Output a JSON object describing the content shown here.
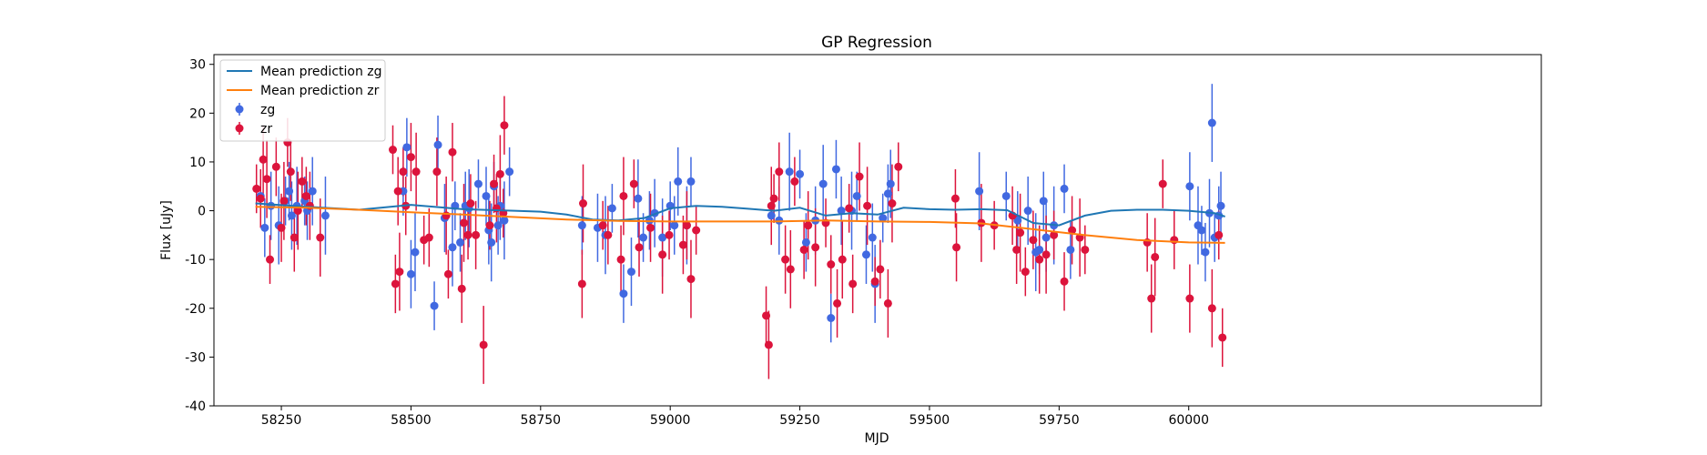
{
  "chart_data": {
    "type": "scatter",
    "title": "GP Regression",
    "xlabel": "MJD",
    "ylabel": "Flux [uJy]",
    "xlim": [
      58120,
      60680
    ],
    "ylim": [
      -40,
      32
    ],
    "xticks": [
      58250,
      58500,
      58750,
      59000,
      59250,
      59500,
      59750,
      60000
    ],
    "yticks": [
      -40,
      -30,
      -20,
      -10,
      0,
      10,
      20,
      30
    ],
    "grid": false,
    "legend_position": "top-left",
    "legend": [
      "Mean prediction zg",
      "Mean prediction zr",
      "zg",
      "zr"
    ],
    "colors": {
      "zg_line": "#1f77b4",
      "zr_line": "#ff7f0e",
      "zg": "#4169e1",
      "zr": "#dc143c"
    },
    "lines": [
      {
        "name": "Mean prediction zg",
        "x": [
          58200,
          58300,
          58400,
          58500,
          58600,
          58700,
          58750,
          58800,
          58850,
          58900,
          58950,
          59000,
          59050,
          59100,
          59150,
          59200,
          59250,
          59300,
          59350,
          59400,
          59450,
          59500,
          59550,
          59600,
          59650,
          59700,
          59750,
          59800,
          59850,
          59900,
          59950,
          60000,
          60050,
          60070
        ],
        "y": [
          1.5,
          0.8,
          0.2,
          1.2,
          0.3,
          0.0,
          -0.2,
          -0.8,
          -1.8,
          -2.0,
          -1.5,
          0.5,
          1.0,
          0.8,
          0.4,
          0.0,
          0.6,
          -1.0,
          -0.5,
          -0.8,
          0.6,
          0.3,
          0.2,
          0.3,
          0.1,
          -2.5,
          -3.0,
          -1.0,
          0.0,
          0.2,
          0.2,
          0.0,
          -0.5,
          -1.2
        ]
      },
      {
        "name": "Mean prediction zr",
        "x": [
          58200,
          58300,
          58400,
          58500,
          58600,
          58700,
          58800,
          58900,
          59000,
          59100,
          59200,
          59300,
          59400,
          59500,
          59600,
          59700,
          59800,
          59900,
          60000,
          60070
        ],
        "y": [
          0.8,
          0.6,
          0.2,
          -0.3,
          -0.8,
          -1.3,
          -1.8,
          -2.1,
          -2.2,
          -2.2,
          -2.2,
          -2.0,
          -2.2,
          -2.3,
          -2.6,
          -3.8,
          -5.0,
          -6.0,
          -6.5,
          -6.6
        ]
      }
    ],
    "series": [
      {
        "name": "zg",
        "x": [
          58210,
          58218,
          58230,
          58245,
          58258,
          58265,
          58270,
          58280,
          58295,
          58300,
          58310,
          58335,
          58485,
          58492,
          58500,
          58508,
          58545,
          58552,
          58565,
          58580,
          58585,
          58595,
          58605,
          58612,
          58630,
          58645,
          58650,
          58655,
          58660,
          58668,
          58672,
          58680,
          58690,
          58830,
          58860,
          58875,
          58888,
          58910,
          58925,
          58938,
          58948,
          58960,
          58970,
          58985,
          59000,
          59008,
          59015,
          59032,
          59040,
          59195,
          59210,
          59230,
          59250,
          59262,
          59280,
          59295,
          59310,
          59320,
          59330,
          59350,
          59360,
          59378,
          59390,
          59395,
          59410,
          59420,
          59425,
          59596,
          59648,
          59670,
          59690,
          59705,
          59712,
          59720,
          59725,
          59740,
          59760,
          59772,
          60002,
          60018,
          60025,
          60032,
          60040,
          60045,
          60050,
          60058,
          60062
        ],
        "y": [
          3,
          -3.5,
          1,
          -3,
          2,
          4,
          -1,
          1,
          2,
          0,
          4,
          -1,
          4,
          13,
          -13,
          -8.5,
          -19.5,
          13.5,
          -1.5,
          -7.5,
          1,
          -6.5,
          1,
          0.5,
          5.5,
          3,
          -4,
          -6.5,
          5,
          -3,
          1,
          -2,
          8,
          -3,
          -3.5,
          -5,
          0.5,
          -17,
          -12.5,
          2.5,
          -5.5,
          -2,
          -0.5,
          -5.5,
          1,
          -3,
          6,
          -3,
          6,
          -1,
          -2,
          8,
          7.5,
          -6.5,
          -2,
          5.5,
          -22,
          8.5,
          0,
          0,
          3,
          -9,
          -5.5,
          -15,
          -1.5,
          3.5,
          5.5,
          4,
          3,
          -2,
          0,
          -8.5,
          -8,
          2,
          -5.5,
          -3,
          4.5,
          -8,
          5,
          -3,
          -4,
          -8.5,
          -0.5,
          18,
          -5.5,
          -1,
          1
        ]
      },
      {
        "name": "zr",
        "x": [
          58202,
          58210,
          58215,
          58222,
          58228,
          58240,
          58250,
          58255,
          58262,
          58268,
          58275,
          58282,
          58290,
          58298,
          58305,
          58325,
          58465,
          58470,
          58475,
          58478,
          58485,
          58490,
          58500,
          58510,
          58525,
          58535,
          58550,
          58568,
          58572,
          58580,
          58598,
          58602,
          58610,
          58615,
          58625,
          58640,
          58652,
          58660,
          58665,
          58672,
          58678,
          58680,
          58830,
          58832,
          58870,
          58880,
          58905,
          58910,
          58930,
          58940,
          58962,
          58985,
          58998,
          59025,
          59032,
          59040,
          59050,
          59185,
          59190,
          59195,
          59200,
          59210,
          59222,
          59232,
          59240,
          59258,
          59266,
          59280,
          59300,
          59310,
          59322,
          59332,
          59345,
          59352,
          59365,
          59380,
          59395,
          59405,
          59420,
          59428,
          59440,
          59550,
          59552,
          59600,
          59625,
          59660,
          59668,
          59675,
          59685,
          59700,
          59712,
          59725,
          59740,
          59760,
          59775,
          59790,
          59800,
          59920,
          59928,
          59935,
          59950,
          59972,
          60002,
          60045,
          60058,
          60065
        ],
        "y": [
          4.5,
          2.5,
          10.5,
          6.5,
          -10,
          9,
          -3.5,
          2,
          14,
          8,
          -5.5,
          0,
          6,
          3,
          1,
          -5.5,
          12.5,
          -15,
          4,
          -12.5,
          8,
          1,
          11,
          8,
          -6,
          -5.5,
          8,
          -1,
          -13,
          12,
          -16,
          -2.5,
          -5,
          1.5,
          -5,
          -27.5,
          -3,
          5.5,
          0.5,
          7.5,
          -0.5,
          17.5,
          -15,
          1.5,
          -3,
          -5,
          -10,
          3,
          5.5,
          -7.5,
          -3.5,
          -9,
          -5,
          -7,
          -3,
          -14,
          -4,
          -21.5,
          -27.5,
          1,
          2.5,
          8,
          -10,
          -12,
          6,
          -8,
          -3,
          -7.5,
          -2.5,
          -11,
          -19,
          -10,
          0.5,
          -15,
          7,
          1,
          -14.5,
          -12,
          -19,
          1.5,
          9,
          2.5,
          -7.5,
          -2.5,
          -3,
          -1,
          -8,
          -4.5,
          -12.5,
          -6,
          -10,
          -9,
          -5,
          -14.5,
          -4,
          -5.5,
          -8,
          -6.5,
          -18,
          -9.5,
          5.5,
          -6,
          -18,
          -20,
          -5,
          -26
        ]
      }
    ]
  }
}
